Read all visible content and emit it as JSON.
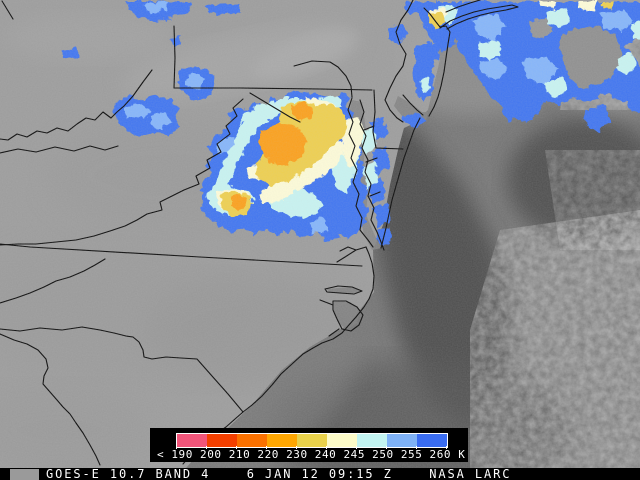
{
  "product": {
    "satellite": "GOES-E",
    "channel": "10.7",
    "band": "4",
    "date": "6 JAN 12",
    "time": "09:15 Z",
    "credit": "NASA LARC",
    "status_text": "GOES-E 10.7 BAND 4    6 JAN 12 09:15 Z    NASA LARC"
  },
  "legend": {
    "units": "K",
    "tick_text": "< 190 200 210 220 230 240 245 250 255 260 K",
    "ticks": [
      "<",
      "190",
      "200",
      "210",
      "220",
      "230",
      "240",
      "245",
      "250",
      "255",
      "260",
      "K"
    ],
    "segment_colors": [
      "#f2557a",
      "#f43f00",
      "#fb7100",
      "#ffa702",
      "#e9d24b",
      "#fcfbc8",
      "#c2f3f0",
      "#7fb2f6",
      "#3a6df2"
    ],
    "panel_bg": "#000000",
    "text_color": "#ffffff"
  },
  "palette": {
    "cloud_blue": "#3f74f0",
    "cloud_light_blue": "#85b5fa",
    "cloud_cyan": "#c8f3f1",
    "cloud_cream": "#fdfbd8",
    "cloud_yellow": "#eecf50",
    "cloud_orange": "#fba01d",
    "land_gray": "#9c9c9c",
    "ocean_gray": "#747474",
    "ocean_dark": "#474747",
    "boundary_black": "#0a0a0a"
  }
}
